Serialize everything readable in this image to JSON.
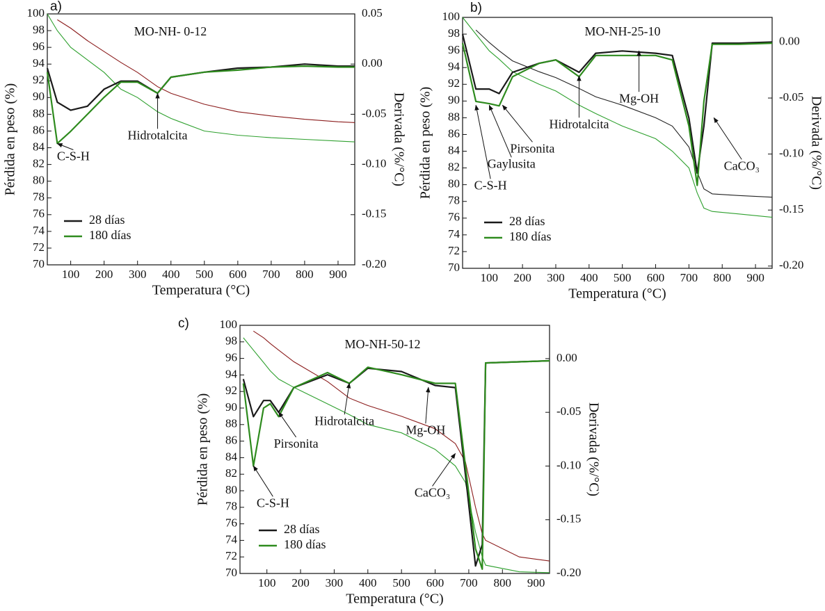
{
  "chart_data": [
    {
      "type": "line",
      "label": "a)",
      "title": "MO-NH- 0-12",
      "x_label": "Temperatura (°C)",
      "y_label": "Pérdida en peso (%)",
      "y2_label": "Derivada (%/°C)",
      "x": [
        30,
        60,
        100,
        150,
        200,
        250,
        300,
        360,
        400,
        500,
        600,
        700,
        800,
        900,
        950
      ],
      "xlim": [
        30,
        950
      ],
      "xticks": [
        100,
        200,
        300,
        400,
        500,
        600,
        700,
        800,
        900
      ],
      "ylim": [
        70,
        100
      ],
      "yticks": [
        70,
        72,
        74,
        76,
        78,
        80,
        82,
        84,
        86,
        88,
        90,
        92,
        94,
        96,
        98,
        100
      ],
      "y2lim": [
        -0.2,
        0.05
      ],
      "y2ticks": [
        0.05,
        {
          "value": 0,
          "label": "0.00"
        },
        -0.05,
        {
          "value": -0.1,
          "label": "-0.10"
        },
        -0.15,
        {
          "value": -0.2,
          "label": "-0.20"
        }
      ],
      "weight_series": [
        {
          "color": "#8b1c1c",
          "values": [
            null,
            99.3,
            98.3,
            96.8,
            95.5,
            94.2,
            93,
            91.3,
            90.5,
            89.2,
            88.3,
            87.8,
            87.4,
            87.1,
            87
          ]
        },
        {
          "color": "#2ea02e",
          "values": [
            100,
            98,
            96,
            94.5,
            93,
            91,
            90,
            88.3,
            87.5,
            86,
            85.5,
            85.2,
            85,
            84.8,
            84.7
          ]
        }
      ],
      "series": [
        {
          "name": "28 días",
          "color": "#1a1a1a",
          "axis": "y2",
          "values": [
            -0.004,
            -0.038,
            -0.046,
            -0.042,
            -0.025,
            -0.017,
            -0.017,
            -0.029,
            -0.013,
            -0.008,
            -0.004,
            -0.003,
            0,
            -0.002,
            -0.002
          ]
        },
        {
          "name": "180 días",
          "color": "#2e8b1e",
          "axis": "y2",
          "values": [
            -0.008,
            -0.079,
            -0.067,
            -0.05,
            -0.033,
            -0.018,
            -0.018,
            -0.029,
            -0.013,
            -0.008,
            -0.006,
            -0.003,
            -0.002,
            -0.003,
            -0.003
          ]
        }
      ],
      "annotations": [
        {
          "text": "C-S-H",
          "x": 60,
          "y": 84.5
        },
        {
          "text": "Hidrotalcita",
          "x": 360,
          "y": 90.5
        }
      ]
    },
    {
      "type": "line",
      "label": "b)",
      "title": "MO-NH-25-10",
      "x_label": "Temperatura (°C)",
      "y_label": "Pérdida en peso (%)",
      "y2_label": "Derivada (%/°C)",
      "x": [
        20,
        60,
        100,
        130,
        170,
        250,
        300,
        370,
        420,
        500,
        600,
        650,
        700,
        725,
        745,
        770,
        850,
        950
      ],
      "xlim": [
        20,
        950
      ],
      "xticks": [
        100,
        200,
        300,
        400,
        500,
        600,
        700,
        800,
        900
      ],
      "ylim": [
        70,
        100
      ],
      "yticks": [
        70,
        72,
        74,
        76,
        78,
        80,
        82,
        84,
        86,
        88,
        90,
        92,
        94,
        96,
        98,
        100
      ],
      "y2lim": [
        -0.202,
        0.022
      ],
      "y2ticks": [
        {
          "value": 0,
          "label": "0.00"
        },
        -0.05,
        {
          "value": -0.1,
          "label": "-0.10"
        },
        -0.15,
        {
          "value": -0.2,
          "label": "-0.20"
        }
      ],
      "weight_series": [
        {
          "color": "#222222",
          "values": [
            null,
            98.5,
            97,
            96,
            94.8,
            93.5,
            92.8,
            91.5,
            90.5,
            89.5,
            88,
            87,
            84.5,
            81.5,
            79.5,
            78.9,
            78.7,
            78.5
          ]
        },
        {
          "color": "#2ea02e",
          "values": [
            100,
            98,
            96,
            95,
            93.5,
            92,
            91.2,
            89.5,
            88.5,
            87,
            85.5,
            84,
            82,
            79,
            77.2,
            76.8,
            76.5,
            76.1
          ]
        }
      ],
      "series": [
        {
          "name": "28 días",
          "color": "#1a1a1a",
          "axis": "y2",
          "values": [
            0.007,
            -0.042,
            -0.042,
            -0.046,
            -0.027,
            -0.019,
            -0.016,
            -0.027,
            -0.01,
            -0.008,
            -0.01,
            -0.012,
            -0.068,
            -0.117,
            -0.075,
            -0.001,
            -0.001,
            0
          ]
        },
        {
          "name": "180 días",
          "color": "#2e8b1e",
          "axis": "y2",
          "values": [
            -0.001,
            -0.053,
            -0.055,
            -0.057,
            -0.031,
            -0.019,
            -0.016,
            -0.031,
            -0.012,
            -0.012,
            -0.012,
            -0.016,
            -0.075,
            -0.128,
            -0.053,
            -0.002,
            -0.002,
            -0.001
          ]
        }
      ],
      "annotations": [
        {
          "text": "C-S-H",
          "x": 60,
          "y": 89.5
        },
        {
          "text": "Gaylusita",
          "x": 100,
          "y": 89.5
        },
        {
          "text": "Pirsonita",
          "x": 140,
          "y": 89.5
        },
        {
          "text": "Hidrotalcita",
          "x": 370,
          "y": 93
        },
        {
          "text": "Mg-OH",
          "x": 550,
          "y": 96
        },
        {
          "text": "CaCO₃",
          "x": 775,
          "y": 88
        }
      ]
    },
    {
      "type": "line",
      "label": "c)",
      "title": "MO-NH-50-12",
      "x_label": "Temperatura (°C)",
      "y_label": "Pérdida en peso (%)",
      "y2_label": "Derivada (%/°C)",
      "x": [
        30,
        60,
        90,
        110,
        135,
        180,
        280,
        345,
        400,
        500,
        600,
        660,
        690,
        720,
        740,
        750,
        850,
        940
      ],
      "xlim": [
        20,
        940
      ],
      "xticks": [
        100,
        200,
        300,
        400,
        500,
        600,
        700,
        800,
        900
      ],
      "ylim": [
        70,
        100
      ],
      "yticks": [
        70,
        72,
        74,
        76,
        78,
        80,
        82,
        84,
        86,
        88,
        90,
        92,
        94,
        96,
        98,
        100
      ],
      "y2lim": [
        -0.2,
        0.031
      ],
      "y2ticks": [
        {
          "value": 0,
          "label": "0.00"
        },
        -0.05,
        {
          "value": -0.1,
          "label": "-0.10"
        },
        -0.15,
        {
          "value": -0.2,
          "label": "-0.20"
        }
      ],
      "weight_series": [
        {
          "color": "#8b1c1c",
          "values": [
            null,
            99.3,
            98.5,
            97.8,
            97,
            95.6,
            93.2,
            91.2,
            90.3,
            89,
            87.5,
            85.7,
            83.5,
            78,
            74.8,
            74,
            72,
            71.5
          ]
        },
        {
          "color": "#2ea02e",
          "values": [
            98.5,
            97,
            95.5,
            94.5,
            93.5,
            92.5,
            90.5,
            89.2,
            88,
            87,
            85,
            83,
            81,
            75,
            72,
            71,
            70.2,
            70.1
          ]
        }
      ],
      "series": [
        {
          "name": "28 días",
          "color": "#1a1a1a",
          "axis": "y2",
          "values": [
            -0.019,
            -0.054,
            -0.039,
            -0.039,
            -0.05,
            -0.027,
            -0.015,
            -0.023,
            -0.009,
            -0.012,
            -0.025,
            -0.027,
            -0.108,
            -0.193,
            -0.173,
            -0.004,
            -0.003,
            -0.002
          ]
        },
        {
          "name": "180 días",
          "color": "#2e8b1e",
          "axis": "y2",
          "values": [
            -0.023,
            -0.1,
            -0.046,
            -0.042,
            -0.054,
            -0.027,
            -0.013,
            -0.023,
            -0.008,
            -0.015,
            -0.023,
            -0.023,
            -0.1,
            -0.177,
            -0.196,
            -0.004,
            -0.003,
            -0.002
          ]
        }
      ],
      "annotations": [
        {
          "text": "C-S-H",
          "x": 60,
          "y": 83
        },
        {
          "text": "Pirsonita",
          "x": 135,
          "y": 89.5
        },
        {
          "text": "Hidrotalcita",
          "x": 345,
          "y": 93
        },
        {
          "text": "Mg-OH",
          "x": 580,
          "y": 92.5
        },
        {
          "text": "CaCO₃",
          "x": 660,
          "y": 84.5
        }
      ]
    }
  ]
}
